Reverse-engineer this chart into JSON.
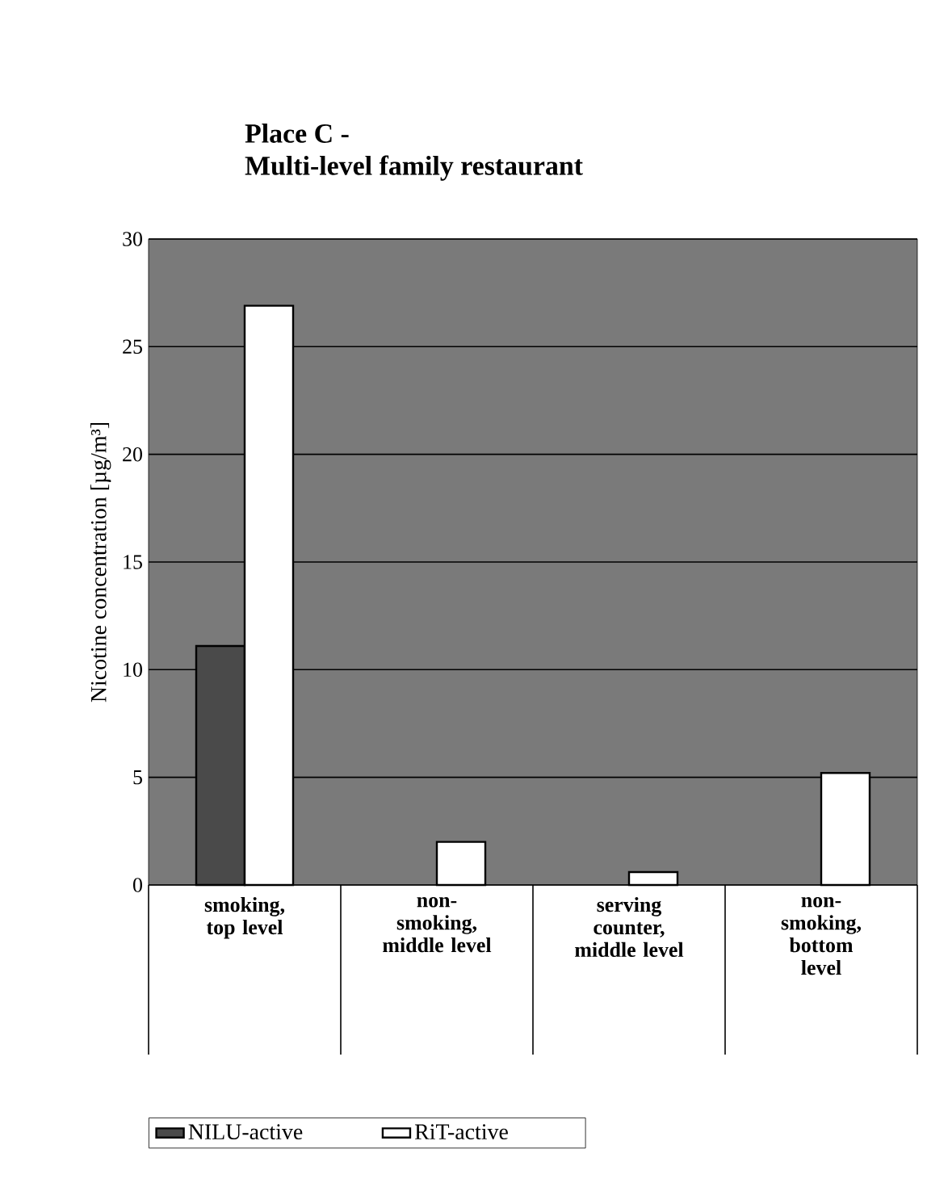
{
  "chart_data": {
    "type": "bar",
    "title": "Place C -",
    "subtitle": "Multi-level family restaurant",
    "ylabel": "Nicotine concentration [µg/m³]",
    "categories": [
      "smoking, top level",
      "non-smoking, middle level",
      "serving counter, middle level",
      "non-smoking, bottom level"
    ],
    "series": [
      {
        "name": "NILU-active",
        "color": "#4a4a4a",
        "values": [
          11.1,
          null,
          null,
          null
        ]
      },
      {
        "name": "RiT-active",
        "color": "#ffffff",
        "values": [
          26.9,
          2.0,
          0.6,
          5.2
        ]
      }
    ],
    "ylim": [
      0,
      30
    ],
    "yticks": [
      0,
      5,
      10,
      15,
      20,
      25,
      30
    ],
    "grid": "y",
    "legend": "bottom"
  }
}
